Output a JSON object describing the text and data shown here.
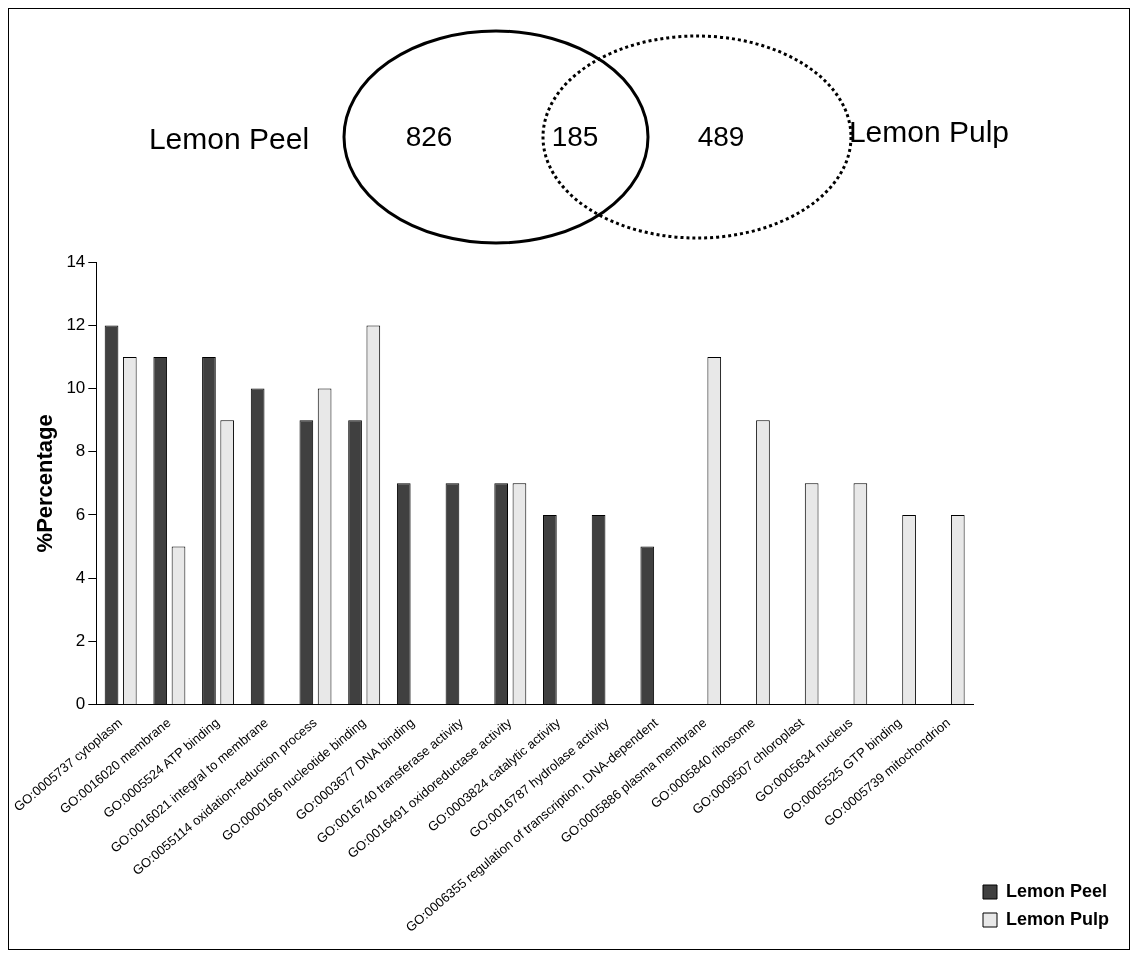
{
  "chart_data": [
    {
      "type": "other",
      "annotations": [
        "826",
        "185",
        "489"
      ],
      "series": [
        {
          "name": "Lemon Peel",
          "line_style": "solid"
        },
        {
          "name": "Lemon Pulp",
          "line_style": "dotted"
        }
      ]
    },
    {
      "type": "bar",
      "ylabel": "%Percentage",
      "categories": [
        "GO:0005737 cytoplasm",
        "GO:0016020 membrane",
        "GO:0005524 ATP binding",
        "GO:0016021 integral to membrane",
        "GO:0055114 oxidation-reduction process",
        "GO:0000166 nucleotide binding",
        "GO:0003677 DNA binding",
        "GO:0016740 transferase activity",
        "GO:0016491 oxidoreductase activity",
        "GO:0003824 catalytic activity",
        "GO:0016787 hydrolase activity",
        "GO:0006355 regulation of transcription, DNA-dependent",
        "GO:0005886 plasma membrane",
        "GO:0005840 ribosome",
        "GO:0009507 chloroplast",
        "GO:0005634 nucleus",
        "GO:0005525 GTP binding",
        "GO:0005739 mitochondrion"
      ],
      "series": [
        {
          "name": "Lemon Peel",
          "color": "#404040",
          "values": [
            12,
            11,
            11,
            10,
            9,
            9,
            7,
            7,
            7,
            6,
            6,
            5,
            null,
            null,
            null,
            null,
            null,
            null
          ]
        },
        {
          "name": "Lemon Pulp",
          "color": "#e8e8e8",
          "values": [
            11,
            5,
            9,
            null,
            10,
            12,
            null,
            null,
            7,
            null,
            null,
            null,
            11,
            9,
            7,
            7,
            6,
            6
          ]
        }
      ],
      "ylim": [
        0,
        14
      ],
      "yticks": [
        0,
        2,
        4,
        6,
        8,
        10,
        12,
        14
      ],
      "grid": false,
      "legend": "right"
    }
  ]
}
